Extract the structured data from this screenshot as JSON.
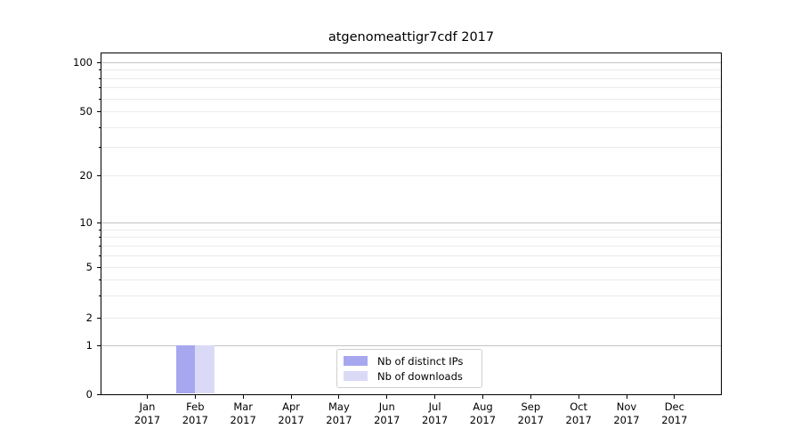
{
  "chart_data": {
    "type": "bar",
    "title": "atgenomeattigr7cdf 2017",
    "xlabel": "",
    "ylabel": "",
    "categories": [
      "Jan",
      "Feb",
      "Mar",
      "Apr",
      "May",
      "Jun",
      "Jul",
      "Aug",
      "Sep",
      "Oct",
      "Nov",
      "Dec"
    ],
    "category_year_line": "2017",
    "series": [
      {
        "name": "Nb of distinct IPs",
        "color": "#a7a7ef",
        "values": [
          0,
          1,
          0,
          0,
          0,
          0,
          0,
          0,
          0,
          0,
          0,
          0
        ]
      },
      {
        "name": "Nb of downloads",
        "color": "#dadaf7",
        "values": [
          0,
          1,
          0,
          0,
          0,
          0,
          0,
          0,
          0,
          0,
          0,
          0
        ]
      }
    ],
    "y_axis": {
      "scale": "log-with-zero-baseline",
      "tick_values": [
        0,
        1,
        2,
        5,
        10,
        20,
        50,
        100
      ],
      "tick_labels": [
        "0",
        "1",
        "2",
        "5",
        "10",
        "20",
        "50",
        "100"
      ],
      "major_grid_values": [
        1,
        10,
        100
      ],
      "labeled_minor_values": [
        2,
        5,
        20,
        50
      ],
      "minor_grid_values": [
        3,
        4,
        6,
        7,
        8,
        9,
        30,
        40,
        60,
        70,
        80,
        90
      ],
      "range_hint": [
        0,
        115
      ]
    },
    "grid": true,
    "legend": {
      "position": "lower center",
      "entries": [
        "Nb of distinct IPs",
        "Nb of downloads"
      ]
    },
    "colors": {
      "major_gridline": "#c2c2c2",
      "minor_gridline": "#ebebeb",
      "spine": "#000000",
      "text": "#000000"
    }
  }
}
